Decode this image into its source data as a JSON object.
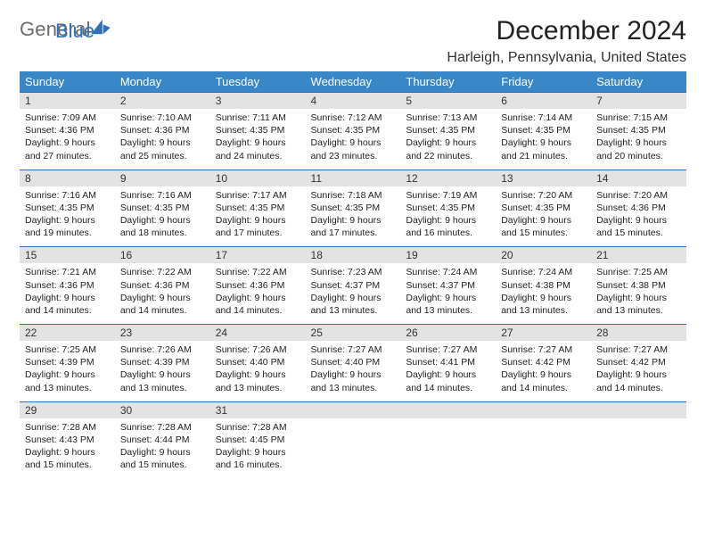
{
  "logo": {
    "line1": "General",
    "line2": "Blue"
  },
  "title": "December 2024",
  "location": "Harleigh, Pennsylvania, United States",
  "day_headers": [
    "Sunday",
    "Monday",
    "Tuesday",
    "Wednesday",
    "Thursday",
    "Friday",
    "Saturday"
  ],
  "colors": {
    "header_bg": "#3a87c8",
    "header_fg": "#ffffff",
    "daynum_bg": "#e3e3e3",
    "rule": "#2f70b6",
    "logo_gray": "#6d6d6d",
    "logo_blue": "#2f70b6"
  },
  "weeks": [
    [
      {
        "n": "1",
        "sr": "7:09 AM",
        "ss": "4:36 PM",
        "dh": "9",
        "dm": "27"
      },
      {
        "n": "2",
        "sr": "7:10 AM",
        "ss": "4:36 PM",
        "dh": "9",
        "dm": "25"
      },
      {
        "n": "3",
        "sr": "7:11 AM",
        "ss": "4:35 PM",
        "dh": "9",
        "dm": "24"
      },
      {
        "n": "4",
        "sr": "7:12 AM",
        "ss": "4:35 PM",
        "dh": "9",
        "dm": "23"
      },
      {
        "n": "5",
        "sr": "7:13 AM",
        "ss": "4:35 PM",
        "dh": "9",
        "dm": "22"
      },
      {
        "n": "6",
        "sr": "7:14 AM",
        "ss": "4:35 PM",
        "dh": "9",
        "dm": "21"
      },
      {
        "n": "7",
        "sr": "7:15 AM",
        "ss": "4:35 PM",
        "dh": "9",
        "dm": "20"
      }
    ],
    [
      {
        "n": "8",
        "sr": "7:16 AM",
        "ss": "4:35 PM",
        "dh": "9",
        "dm": "19"
      },
      {
        "n": "9",
        "sr": "7:16 AM",
        "ss": "4:35 PM",
        "dh": "9",
        "dm": "18"
      },
      {
        "n": "10",
        "sr": "7:17 AM",
        "ss": "4:35 PM",
        "dh": "9",
        "dm": "17"
      },
      {
        "n": "11",
        "sr": "7:18 AM",
        "ss": "4:35 PM",
        "dh": "9",
        "dm": "17"
      },
      {
        "n": "12",
        "sr": "7:19 AM",
        "ss": "4:35 PM",
        "dh": "9",
        "dm": "16"
      },
      {
        "n": "13",
        "sr": "7:20 AM",
        "ss": "4:35 PM",
        "dh": "9",
        "dm": "15"
      },
      {
        "n": "14",
        "sr": "7:20 AM",
        "ss": "4:36 PM",
        "dh": "9",
        "dm": "15"
      }
    ],
    [
      {
        "n": "15",
        "sr": "7:21 AM",
        "ss": "4:36 PM",
        "dh": "9",
        "dm": "14"
      },
      {
        "n": "16",
        "sr": "7:22 AM",
        "ss": "4:36 PM",
        "dh": "9",
        "dm": "14"
      },
      {
        "n": "17",
        "sr": "7:22 AM",
        "ss": "4:36 PM",
        "dh": "9",
        "dm": "14"
      },
      {
        "n": "18",
        "sr": "7:23 AM",
        "ss": "4:37 PM",
        "dh": "9",
        "dm": "13"
      },
      {
        "n": "19",
        "sr": "7:24 AM",
        "ss": "4:37 PM",
        "dh": "9",
        "dm": "13"
      },
      {
        "n": "20",
        "sr": "7:24 AM",
        "ss": "4:38 PM",
        "dh": "9",
        "dm": "13"
      },
      {
        "n": "21",
        "sr": "7:25 AM",
        "ss": "4:38 PM",
        "dh": "9",
        "dm": "13"
      }
    ],
    [
      {
        "n": "22",
        "sr": "7:25 AM",
        "ss": "4:39 PM",
        "dh": "9",
        "dm": "13"
      },
      {
        "n": "23",
        "sr": "7:26 AM",
        "ss": "4:39 PM",
        "dh": "9",
        "dm": "13"
      },
      {
        "n": "24",
        "sr": "7:26 AM",
        "ss": "4:40 PM",
        "dh": "9",
        "dm": "13"
      },
      {
        "n": "25",
        "sr": "7:27 AM",
        "ss": "4:40 PM",
        "dh": "9",
        "dm": "13"
      },
      {
        "n": "26",
        "sr": "7:27 AM",
        "ss": "4:41 PM",
        "dh": "9",
        "dm": "14"
      },
      {
        "n": "27",
        "sr": "7:27 AM",
        "ss": "4:42 PM",
        "dh": "9",
        "dm": "14"
      },
      {
        "n": "28",
        "sr": "7:27 AM",
        "ss": "4:42 PM",
        "dh": "9",
        "dm": "14"
      }
    ],
    [
      {
        "n": "29",
        "sr": "7:28 AM",
        "ss": "4:43 PM",
        "dh": "9",
        "dm": "15"
      },
      {
        "n": "30",
        "sr": "7:28 AM",
        "ss": "4:44 PM",
        "dh": "9",
        "dm": "15"
      },
      {
        "n": "31",
        "sr": "7:28 AM",
        "ss": "4:45 PM",
        "dh": "9",
        "dm": "16"
      },
      {
        "empty": true
      },
      {
        "empty": true
      },
      {
        "empty": true
      },
      {
        "empty": true
      }
    ]
  ],
  "labels": {
    "sunrise": "Sunrise:",
    "sunset": "Sunset:",
    "daylight1": "Daylight:",
    "hours": "hours",
    "and": "and",
    "minutes": "minutes."
  }
}
